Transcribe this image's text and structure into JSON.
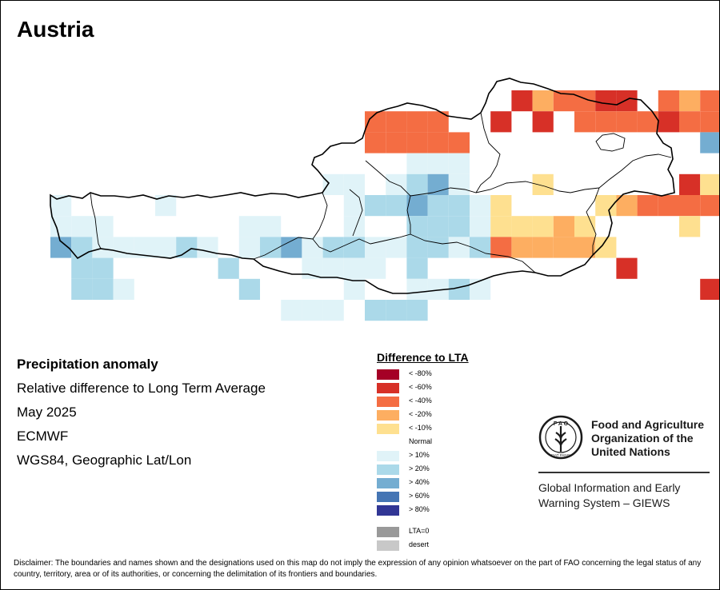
{
  "title": "Austria",
  "info": {
    "heading": "Precipitation anomaly",
    "line1": "Relative difference to Long Term Average",
    "line2": "May 2025",
    "line3": "ECMWF",
    "line4": "WGS84, Geographic Lat/Lon"
  },
  "legend": {
    "title": "Difference to LTA",
    "items": [
      {
        "label": "< -80%",
        "color": "#a50026"
      },
      {
        "label": "< -60%",
        "color": "#d73027"
      },
      {
        "label": "< -40%",
        "color": "#f46d43"
      },
      {
        "label": "< -20%",
        "color": "#fdae61"
      },
      {
        "label": "< -10%",
        "color": "#fee090"
      },
      {
        "label": "Normal",
        "color": "#ffffff"
      },
      {
        "label": "> 10%",
        "color": "#e0f3f8"
      },
      {
        "label": "> 20%",
        "color": "#abd9e9"
      },
      {
        "label": "> 40%",
        "color": "#74add1"
      },
      {
        "label": "> 60%",
        "color": "#4575b4"
      },
      {
        "label": "> 80%",
        "color": "#313695"
      }
    ],
    "extra": [
      {
        "label": "LTA=0",
        "color": "#999999"
      },
      {
        "label": "desert",
        "color": "#c8c8c8"
      }
    ]
  },
  "fao": {
    "name_line1": "Food and Agriculture",
    "name_line2": "Organization of the",
    "name_line3": "United Nations",
    "giews_line1": "Global Information and Early",
    "giews_line2": "Warning System – GIEWS",
    "logo_letters": "F A O",
    "logo_motto": "FIAT PANIS"
  },
  "disclaimer": "Disclaimer: The boundaries and names shown and the designations used on this map do not imply the expression of any opinion whatsoever on the part of FAO concerning the legal status of any country, territory, area or of its authorities, or concerning the delimitation of its frontiers and boundaries.",
  "map_grid": {
    "col0": 62,
    "row0": 112,
    "rows": [
      {
        "row": 0,
        "start": 21,
        "classes": [
          0,
          4,
          2,
          3,
          3,
          4,
          4,
          0,
          3,
          2,
          3,
          3,
          3,
          3
        ]
      },
      {
        "row": 1,
        "start": 15,
        "classes": [
          3,
          3,
          3,
          3,
          0,
          0,
          4,
          0,
          4,
          0,
          3,
          3,
          3,
          3,
          4,
          3,
          3,
          3,
          3
        ]
      },
      {
        "row": 2,
        "start": 15,
        "classes": [
          3,
          3,
          3,
          3,
          3,
          0,
          0,
          0,
          0,
          0,
          -1,
          -1,
          -1,
          -1,
          0,
          -1,
          3,
          2,
          4
        ]
      },
      {
        "row": 3,
        "start": 16,
        "classes": [
          0,
          1,
          1,
          1,
          -1,
          0,
          0,
          0,
          0,
          0,
          0,
          0,
          -1,
          -1,
          0,
          0,
          -1,
          -1
        ]
      },
      {
        "row": 4,
        "start": 13,
        "classes": [
          1,
          1,
          -1,
          1,
          2,
          3,
          1,
          -1,
          -1,
          -1,
          1,
          0,
          0,
          0,
          0,
          0,
          0,
          4,
          1,
          -1,
          0,
          0,
          0
        ]
      },
      {
        "row": 5,
        "start": 0,
        "classes": [
          1,
          0,
          0,
          0,
          0,
          1,
          0,
          0,
          0,
          0,
          0,
          0,
          0,
          0,
          1,
          2,
          2,
          3,
          2,
          2,
          1,
          1,
          0,
          0,
          0,
          0,
          1,
          2,
          3,
          3,
          3,
          3,
          3,
          3,
          3,
          3,
          3,
          0
        ]
      },
      {
        "row": 6,
        "start": 0,
        "classes": [
          1,
          1,
          1,
          -1,
          0,
          0,
          -1,
          0,
          0,
          1,
          1,
          0,
          0,
          0,
          1,
          0,
          0,
          2,
          2,
          2,
          1,
          1,
          1,
          1,
          2,
          1,
          -1,
          -1,
          -1,
          -1,
          1,
          -1,
          -1,
          4,
          4,
          4
        ]
      },
      {
        "row": 7,
        "start": 0,
        "classes": [
          3,
          2,
          1,
          1,
          1,
          1,
          2,
          1,
          0,
          1,
          2,
          3,
          1,
          2,
          2,
          1,
          1,
          2,
          2,
          1,
          2,
          3,
          2,
          2,
          2,
          2,
          1,
          -1,
          0,
          -1,
          -1,
          -1,
          0,
          4,
          3
        ]
      },
      {
        "row": 8,
        "start": 1,
        "classes": [
          2,
          2,
          -1,
          -1,
          -1,
          0,
          0,
          2,
          -1,
          -1,
          -1,
          1,
          1,
          1,
          1,
          0,
          2,
          -1,
          0,
          0,
          -1,
          -1,
          0,
          0,
          0,
          0,
          4,
          0,
          0,
          -1,
          0,
          4,
          3,
          3,
          3,
          4
        ]
      },
      {
        "row": 9,
        "start": 1,
        "classes": [
          2,
          2,
          1,
          0,
          0,
          0,
          0,
          0,
          2,
          -1,
          -1,
          -1,
          0,
          1,
          -1,
          -1,
          1,
          1,
          2,
          1,
          -1,
          -1,
          -1,
          -1,
          -1,
          -1,
          -1,
          -1,
          -1,
          -1,
          4,
          3,
          3,
          4,
          3
        ]
      },
      {
        "row": 10,
        "start": 11,
        "classes": [
          1,
          1,
          1,
          -1,
          2,
          2,
          2,
          -1,
          0,
          0,
          0,
          0,
          -1,
          -1,
          -1,
          -1,
          -1,
          -1,
          -1,
          -1,
          -1,
          -1,
          -1,
          -1,
          -1,
          -1,
          -1,
          -1,
          -1,
          2,
          3,
          4
        ]
      },
      {
        "row": 11,
        "start": 11,
        "classes": [
          -1,
          -1,
          -1,
          -1,
          -1,
          -1,
          -1,
          -1,
          -1,
          -1,
          -1,
          -1,
          -1,
          -1,
          -1,
          -1,
          -1,
          -1,
          -1,
          -1,
          -1,
          -1,
          -1,
          -1,
          -1,
          -1,
          -1,
          -1,
          -1,
          -1,
          -1
        ]
      }
    ]
  }
}
